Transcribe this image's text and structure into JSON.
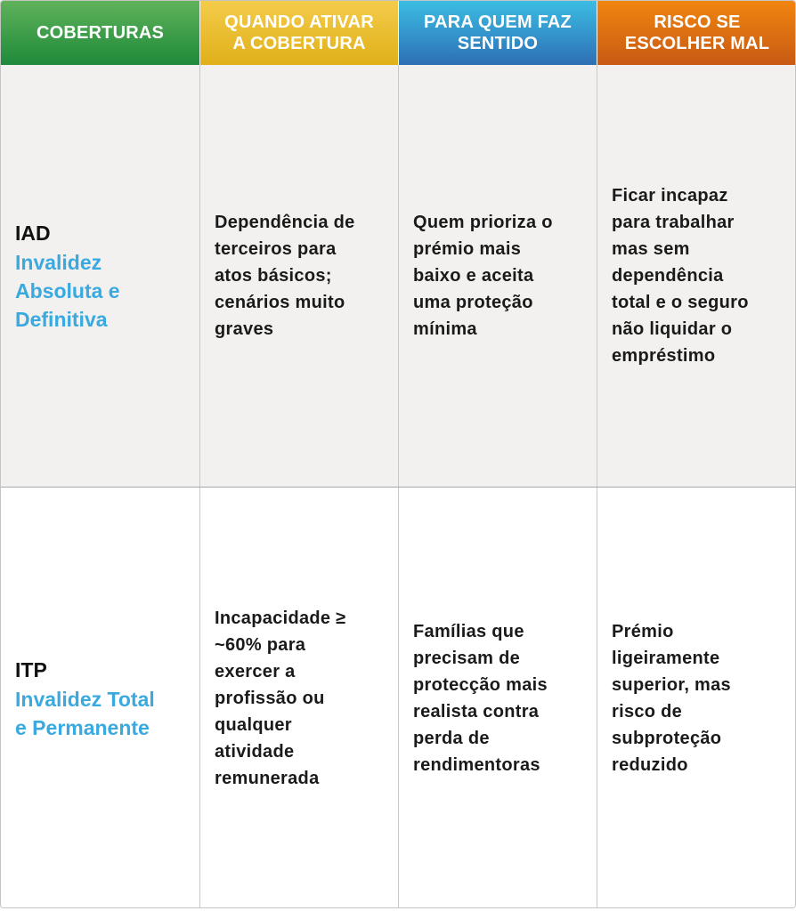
{
  "header": {
    "col1": "COBERTURAS",
    "col2": "QUANDO ATIVAR\nA COBERTURA",
    "col3": "PARA QUEM FAZ\nSENTIDO",
    "col4": "RISCO SE\nESCOLHER MAL"
  },
  "colors": {
    "green": "#2e9a40",
    "yellow": "#ebbd2a",
    "blue": "#3396d0",
    "orange": "#e0700f",
    "coverage_name": "#3aa9e0"
  },
  "rows": [
    {
      "code": "IAD",
      "name": "Invalidez\nAbsoluta e\nDefinitiva",
      "when": "Dependência de\nterceiros para\natos básicos;\ncenários muito\ngraves",
      "who": "Quem prioriza o\nprémio mais\nbaixo e aceita\numa proteção\nmínima",
      "risk": "Ficar incapaz\npara trabalhar\nmas sem\ndependência\ntotal e o seguro\nnão liquidar o\nempréstimo"
    },
    {
      "code": "ITP",
      "name": "Invalidez Total\ne Permanente",
      "when": "Incapacidade ≥\n~60% para\nexercer a\nprofissão ou\nqualquer\natividade\nremunerada",
      "who": "Famílias que\nprecisam de\nprotecção mais\nrealista contra\nperda de\nrendimentoras",
      "risk": "Prémio\nligeiramente\nsuperior, mas\nrisco de\nsubproteção\nreduzido"
    }
  ]
}
